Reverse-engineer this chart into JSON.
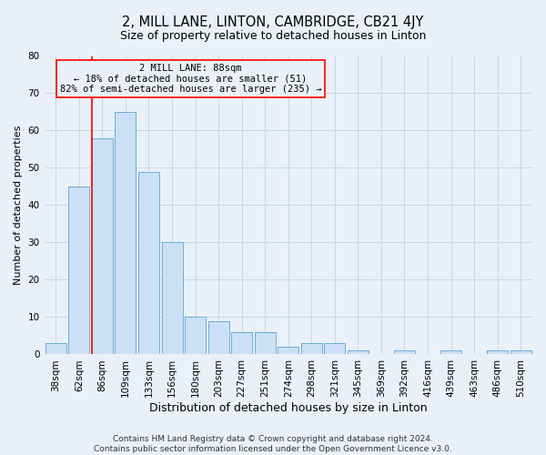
{
  "title": "2, MILL LANE, LINTON, CAMBRIDGE, CB21 4JY",
  "subtitle": "Size of property relative to detached houses in Linton",
  "xlabel": "Distribution of detached houses by size in Linton",
  "ylabel": "Number of detached properties",
  "categories": [
    "38sqm",
    "62sqm",
    "86sqm",
    "109sqm",
    "133sqm",
    "156sqm",
    "180sqm",
    "203sqm",
    "227sqm",
    "251sqm",
    "274sqm",
    "298sqm",
    "321sqm",
    "345sqm",
    "369sqm",
    "392sqm",
    "416sqm",
    "439sqm",
    "463sqm",
    "486sqm",
    "510sqm"
  ],
  "values": [
    3,
    45,
    58,
    65,
    49,
    30,
    10,
    9,
    6,
    6,
    2,
    3,
    3,
    1,
    0,
    1,
    0,
    1,
    0,
    1,
    1
  ],
  "bar_color": "#cce0f5",
  "bar_edge_color": "#6aaed6",
  "bar_edge_width": 0.7,
  "grid_color": "#c8d4e8",
  "background_color": "#eaf0f8",
  "ylim": [
    0,
    80
  ],
  "yticks": [
    0,
    10,
    20,
    30,
    40,
    50,
    60,
    70,
    80
  ],
  "marker_label": "2 MILL LANE: 88sqm",
  "annotation_line1": "← 18% of detached houses are smaller (51)",
  "annotation_line2": "82% of semi-detached houses are larger (235) →",
  "footnote1": "Contains HM Land Registry data © Crown copyright and database right 2024.",
  "footnote2": "Contains public sector information licensed under the Open Government Licence v3.0.",
  "title_fontsize": 10.5,
  "subtitle_fontsize": 9,
  "xlabel_fontsize": 9,
  "ylabel_fontsize": 8,
  "tick_fontsize": 7.5,
  "annotation_fontsize": 7.5,
  "footnote_fontsize": 6.5,
  "red_line_bar_index": 2
}
